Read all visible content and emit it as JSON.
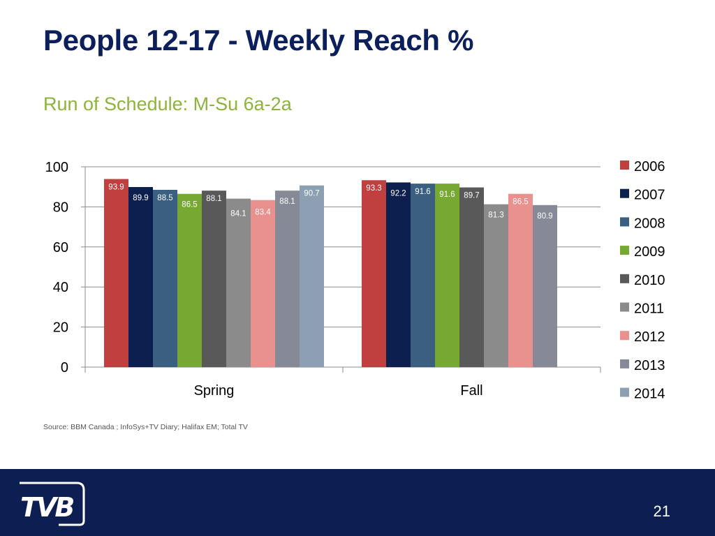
{
  "slide": {
    "title": "People 12-17 - Weekly Reach %",
    "subtitle": "Run of Schedule: M-Su 6a-2a",
    "source": "Source: BBM Canada ; InfoSys+TV Diary; Halifax EM; Total TV",
    "page_number": "21"
  },
  "logo": {
    "icon": "tvb-logo-icon"
  },
  "colors": {
    "title": "#0b1f5c",
    "subtitle": "#8db33a",
    "footer": "#0d1f52"
  },
  "chart_data": {
    "type": "bar",
    "categories": [
      "Spring",
      "Fall"
    ],
    "ylim": [
      0,
      100
    ],
    "yticks": [
      0,
      20,
      40,
      60,
      80,
      100
    ],
    "grid": true,
    "legend_position": "right",
    "data_labels": true,
    "series": [
      {
        "name": "2006",
        "values": [
          93.9,
          93.3
        ],
        "color": "#c0403f"
      },
      {
        "name": "2007",
        "values": [
          89.9,
          92.2
        ],
        "color": "#0d1f4f"
      },
      {
        "name": "2008",
        "values": [
          88.5,
          91.6
        ],
        "color": "#3a5f80"
      },
      {
        "name": "2009",
        "values": [
          86.5,
          91.6
        ],
        "color": "#76a832"
      },
      {
        "name": "2010",
        "values": [
          88.1,
          89.7
        ],
        "color": "#595959"
      },
      {
        "name": "2011",
        "values": [
          84.1,
          81.3
        ],
        "color": "#8b8b8b"
      },
      {
        "name": "2012",
        "values": [
          83.4,
          86.5
        ],
        "color": "#e8918f"
      },
      {
        "name": "2013",
        "values": [
          88.1,
          80.9
        ],
        "color": "#868a97"
      },
      {
        "name": "2014",
        "values": [
          90.7,
          null
        ],
        "color": "#8d9fb3"
      }
    ]
  }
}
